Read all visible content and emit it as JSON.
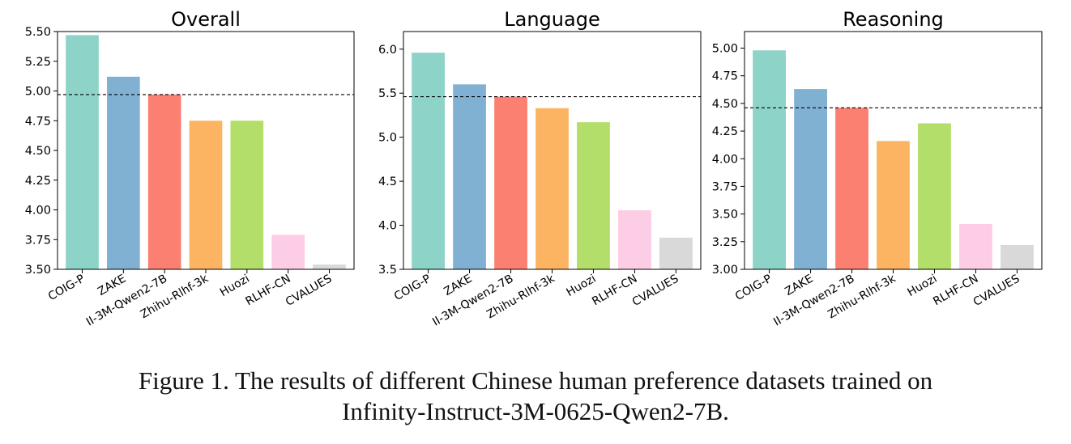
{
  "chart_data": [
    {
      "type": "bar",
      "title": "Overall",
      "categories": [
        "COIG-P",
        "ZAKE",
        "II-3M-Qwen2-7B",
        "Zhihu-Rlhf-3k",
        "Huozi",
        "RLHF-CN",
        "CVALUES"
      ],
      "values": [
        5.47,
        5.12,
        4.97,
        4.75,
        4.75,
        3.79,
        3.54
      ],
      "ylim": [
        3.5,
        5.5
      ],
      "yticks": [
        "3.50",
        "3.75",
        "4.00",
        "4.25",
        "4.50",
        "4.75",
        "5.00",
        "5.25",
        "5.50"
      ],
      "reference_line": 4.97,
      "xlabel": "",
      "ylabel": ""
    },
    {
      "type": "bar",
      "title": "Language",
      "categories": [
        "COIG-P",
        "ZAKE",
        "II-3M-Qwen2-7B",
        "Zhihu-Rlhf-3k",
        "Huozi",
        "RLHF-CN",
        "CVALUES"
      ],
      "values": [
        5.96,
        5.6,
        5.46,
        5.33,
        5.17,
        4.17,
        3.86
      ],
      "ylim": [
        3.5,
        6.2
      ],
      "yticks": [
        "3.5",
        "4.0",
        "4.5",
        "5.0",
        "5.5",
        "6.0"
      ],
      "reference_line": 5.46,
      "xlabel": "",
      "ylabel": ""
    },
    {
      "type": "bar",
      "title": "Reasoning",
      "categories": [
        "COIG-P",
        "ZAKE",
        "II-3M-Qwen2-7B",
        "Zhihu-Rlhf-3k",
        "Huozi",
        "RLHF-CN",
        "CVALUES"
      ],
      "values": [
        4.98,
        4.63,
        4.46,
        4.16,
        4.32,
        3.41,
        3.22
      ],
      "ylim": [
        3.0,
        5.15
      ],
      "yticks": [
        "3.00",
        "3.25",
        "3.50",
        "3.75",
        "4.00",
        "4.25",
        "4.50",
        "4.75",
        "5.00"
      ],
      "reference_line": 4.46,
      "xlabel": "",
      "ylabel": ""
    }
  ],
  "colors": [
    "#8dd3c7",
    "#80b1d3",
    "#fb8072",
    "#fdb462",
    "#b3de69",
    "#fccde5",
    "#d9d9d9"
  ],
  "caption": {
    "line1": "Figure 1. The results of different Chinese human preference datasets trained on",
    "line2": "Infinity-Instruct-3M-0625-Qwen2-7B."
  }
}
